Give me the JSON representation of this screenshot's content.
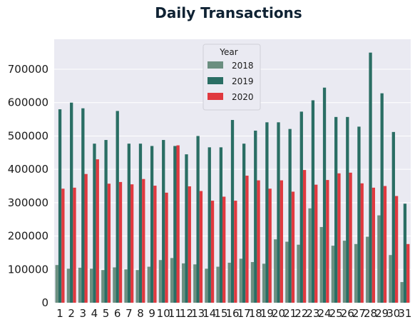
{
  "chart_data": {
    "type": "bar",
    "title": "Daily Transactions",
    "xlabel": "",
    "ylabel": "",
    "ylim": [
      0,
      790000
    ],
    "y_ticks": [
      "0",
      "100000",
      "200000",
      "300000",
      "400000",
      "500000",
      "600000",
      "700000"
    ],
    "y_tick_values": [
      0,
      100000,
      200000,
      300000,
      400000,
      500000,
      600000,
      700000
    ],
    "grid": true,
    "legend": {
      "title": "Year",
      "placement": "top-center"
    },
    "categories": [
      "1",
      "2",
      "3",
      "4",
      "5",
      "6",
      "7",
      "8",
      "9",
      "10",
      "11",
      "12",
      "13",
      "14",
      "15",
      "16",
      "17",
      "18",
      "19",
      "20",
      "21",
      "22",
      "23",
      "24",
      "25",
      "26",
      "27",
      "28",
      "29",
      "30",
      "31"
    ],
    "series": [
      {
        "name": "2018",
        "color": "#6b8f80",
        "values": [
          113000,
          102000,
          105000,
          102000,
          98000,
          106000,
          100000,
          98000,
          108000,
          128000,
          134000,
          118000,
          115000,
          102000,
          108000,
          120000,
          132000,
          122000,
          117000,
          190000,
          183000,
          174000,
          283000,
          227000,
          171000,
          186000,
          176000,
          198000,
          262000,
          143000,
          62000
        ]
      },
      {
        "name": "2019",
        "color": "#2a6e64",
        "values": [
          580000,
          600000,
          583000,
          477000,
          488000,
          575000,
          477000,
          477000,
          470000,
          488000,
          470000,
          445000,
          500000,
          466000,
          466000,
          548000,
          477000,
          516000,
          541000,
          541000,
          521000,
          573000,
          607000,
          645000,
          557000,
          557000,
          528000,
          750000,
          628000,
          512000,
          297000
        ]
      },
      {
        "name": "2020",
        "color": "#e0393f",
        "values": [
          342000,
          345000,
          386000,
          430000,
          357000,
          362000,
          355000,
          371000,
          351000,
          330000,
          472000,
          349000,
          335000,
          306000,
          318000,
          306000,
          381000,
          367000,
          342000,
          367000,
          333000,
          398000,
          354000,
          368000,
          388000,
          390000,
          358000,
          345000,
          350000,
          320000,
          176000
        ]
      }
    ]
  }
}
